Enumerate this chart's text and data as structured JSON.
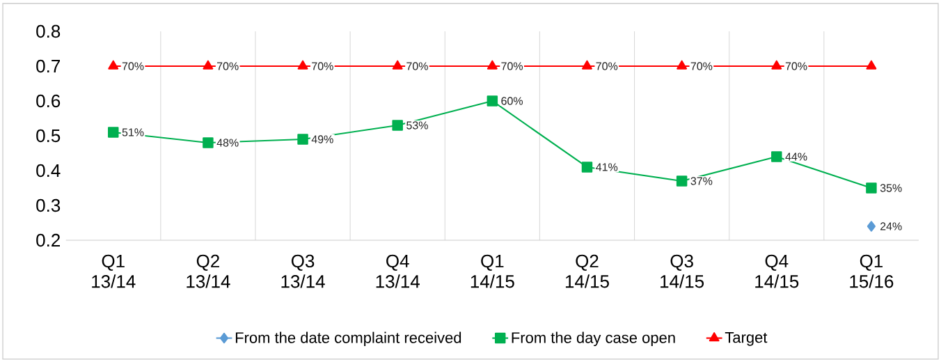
{
  "chart_data": {
    "type": "line",
    "categories": [
      "Q1 13/14",
      "Q2 13/14",
      "Q3 13/14",
      "Q4 13/14",
      "Q1 14/15",
      "Q2 14/15",
      "Q3 14/15",
      "Q4 14/15",
      "Q1 15/16"
    ],
    "series": [
      {
        "name": "From the date complaint received",
        "color": "#5b9bd5",
        "marker": "diamond",
        "values": [
          null,
          null,
          null,
          null,
          null,
          null,
          null,
          null,
          0.24
        ],
        "value_labels": [
          null,
          null,
          null,
          null,
          null,
          null,
          null,
          null,
          "24%"
        ]
      },
      {
        "name": "From the day case open",
        "color": "#00b050",
        "marker": "square",
        "values": [
          0.51,
          0.48,
          0.49,
          0.53,
          0.6,
          0.41,
          0.37,
          0.44,
          0.35
        ],
        "value_labels": [
          "51%",
          "48%",
          "49%",
          "53%",
          "60%",
          "41%",
          "37%",
          "44%",
          "35%"
        ]
      },
      {
        "name": "Target",
        "color": "#ff0000",
        "marker": "triangle",
        "values": [
          0.7,
          0.7,
          0.7,
          0.7,
          0.7,
          0.7,
          0.7,
          0.7,
          0.7
        ],
        "value_labels": [
          "70%",
          "70%",
          "70%",
          "70%",
          "70%",
          "70%",
          "70%",
          "70%",
          null
        ]
      }
    ],
    "ylim": [
      0.2,
      0.8
    ],
    "yticks": [
      0.2,
      0.3,
      0.4,
      0.5,
      0.6,
      0.7,
      0.8
    ],
    "grid": "x",
    "legend": "bottom",
    "line_style": "solid"
  }
}
